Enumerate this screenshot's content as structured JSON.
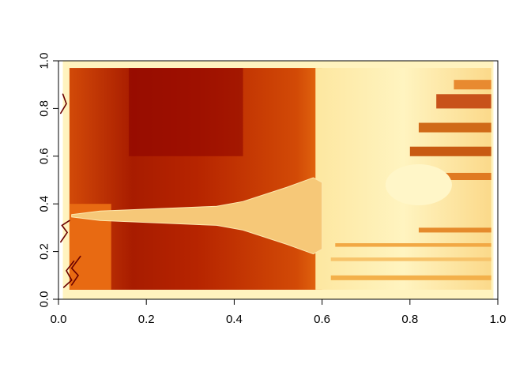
{
  "chart_data": {
    "type": "heatmap",
    "title": "",
    "xlabel": "",
    "ylabel": "",
    "xlim": [
      0,
      1
    ],
    "ylim": [
      0,
      1
    ],
    "x_ticks": [
      "0.0",
      "0.2",
      "0.4",
      "0.6",
      "0.8",
      "1.0"
    ],
    "y_ticks": [
      "0.0",
      "0.2",
      "0.4",
      "0.6",
      "0.8",
      "1.0"
    ],
    "x_tick_values": [
      0,
      0.2,
      0.4,
      0.6,
      0.8,
      1.0
    ],
    "y_tick_values": [
      0,
      0.2,
      0.4,
      0.6,
      0.8,
      1.0
    ],
    "grid": false,
    "colormap": [
      "#8b0000",
      "#c02800",
      "#e05a0a",
      "#f49a30",
      "#fbd27a",
      "#fff6bf"
    ],
    "image_content": "rotated photograph of the Eiffel Tower rendered with a heat color palette; the tower lies horizontally with its top at the left, around y = 0.35, and its base near x = 0.6; the handwritten notes at lower left are part of the photograph",
    "image_extent": {
      "x": [
        0.01,
        0.99
      ],
      "y": [
        0.0,
        1.0
      ]
    }
  }
}
